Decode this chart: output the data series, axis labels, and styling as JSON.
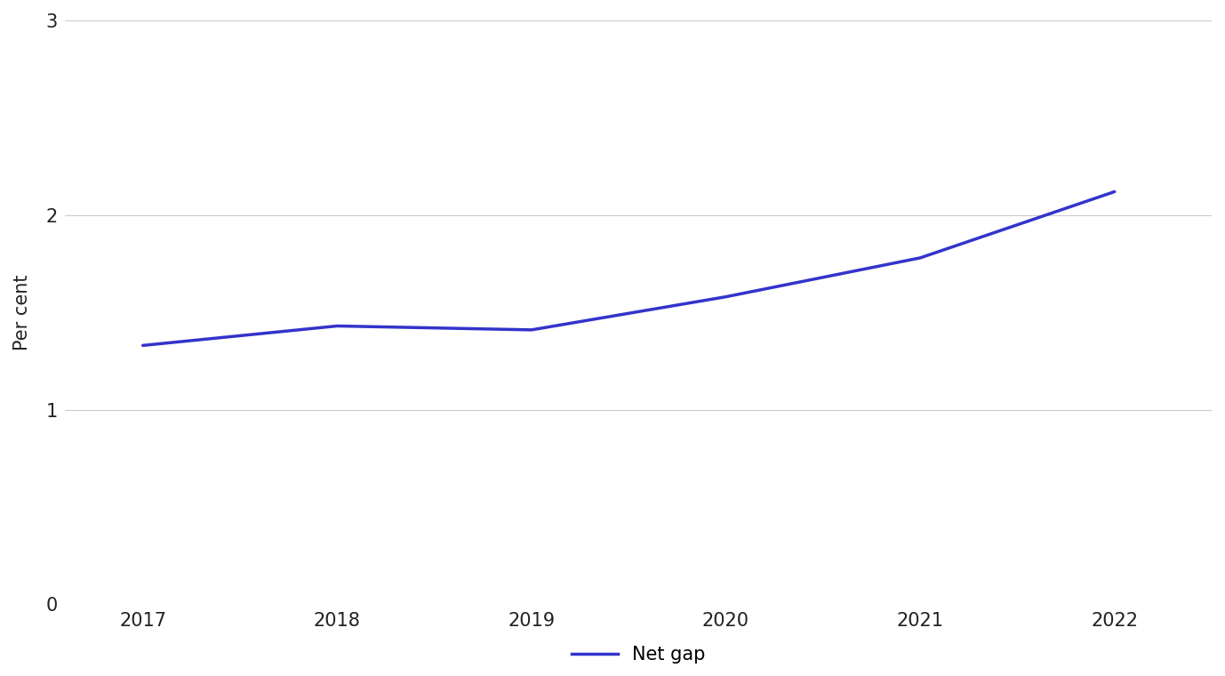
{
  "x": [
    2017,
    2018,
    2019,
    2020,
    2021,
    2022
  ],
  "y_net_gap": [
    1.33,
    1.43,
    1.41,
    1.58,
    1.78,
    2.12
  ],
  "line_color": "#3333cc",
  "line_width": 2.5,
  "ylabel": "Per cent",
  "ylim": [
    0,
    3
  ],
  "yticks": [
    0,
    1,
    2,
    3
  ],
  "xlim": [
    2016.6,
    2022.5
  ],
  "xticks": [
    2017,
    2018,
    2019,
    2020,
    2021,
    2022
  ],
  "legend_label": "Net gap",
  "grid_color": "#cccccc",
  "background_color": "#ffffff",
  "tick_fontsize": 15,
  "ylabel_fontsize": 15,
  "legend_fontsize": 15
}
